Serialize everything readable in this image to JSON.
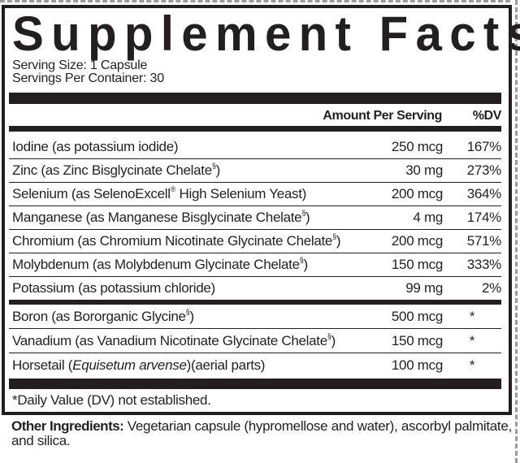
{
  "title": "Supplement Facts",
  "serving_size": "Serving Size: 1 Capsule",
  "servings_per_container": "Servings Per Container: 30",
  "header": {
    "amount": "Amount Per Serving",
    "dv": "%DV"
  },
  "group1": [
    {
      "name": "Iodine (as potassium iodide)",
      "sup": "",
      "rest": "",
      "amount": "250 mcg",
      "dv": "167%"
    },
    {
      "name": "Zinc (as Zinc Bisglycinate Chelate",
      "sup": "§",
      "rest": ")",
      "amount": "30 mg",
      "dv": "273%"
    },
    {
      "name": "Selenium (as SelenoExcell",
      "sup": "®",
      "rest": " High Selenium Yeast)",
      "amount": "200 mcg",
      "dv": "364%"
    },
    {
      "name": "Manganese (as Manganese Bisglycinate Chelate",
      "sup": "§",
      "rest": ")",
      "amount": "4 mg",
      "dv": "174%"
    },
    {
      "name": "Chromium (as Chromium Nicotinate Glycinate Chelate",
      "sup": "§",
      "rest": ")",
      "amount": "200 mcg",
      "dv": "571%"
    },
    {
      "name": "Molybdenum (as Molybdenum Glycinate Chelate",
      "sup": "§",
      "rest": ")",
      "amount": "150 mcg",
      "dv": "333%"
    },
    {
      "name": "Potassium (as potassium chloride)",
      "sup": "",
      "rest": "",
      "amount": "99 mg",
      "dv": "2%"
    }
  ],
  "group2": [
    {
      "name": "Boron (as Bororganic Glycine",
      "sup": "§",
      "rest": ")",
      "amount": "500 mcg",
      "dv": "*"
    },
    {
      "name": "Vanadium (as Vanadium Nicotinate Glycinate Chelate",
      "sup": "§",
      "rest": ")",
      "amount": "150 mcg",
      "dv": "*"
    },
    {
      "name": "Horsetail (",
      "italic": "Equisetum arvense",
      "rest": ")(aerial parts)",
      "amount": "100 mcg",
      "dv": "*"
    }
  ],
  "footnote": "*Daily Value (DV) not established.",
  "other_ingredients": {
    "label": "Other Ingredients:",
    "text": " Vegetarian capsule (hypromellose and water), ascorbyl palmitate, and silica."
  }
}
